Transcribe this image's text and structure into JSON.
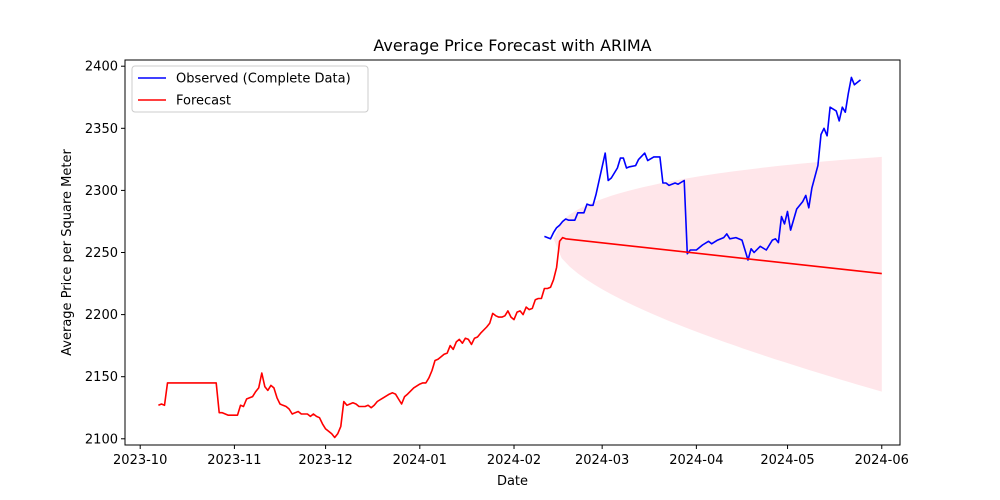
{
  "chart_data": {
    "type": "line",
    "title": "Average Price Forecast with ARIMA",
    "xlabel": "Date",
    "ylabel": "Average Price per Square Meter",
    "xlim": [
      "2023-09-26",
      "2024-06-07"
    ],
    "ylim": [
      2095,
      2405
    ],
    "x_ticks": [
      "2023-10",
      "2023-11",
      "2023-12",
      "2024-01",
      "2024-02",
      "2024-03",
      "2024-04",
      "2024-05",
      "2024-06"
    ],
    "y_ticks": [
      2100,
      2150,
      2200,
      2250,
      2300,
      2350,
      2400
    ],
    "grid": false,
    "legend": {
      "placement": "top-left",
      "entries": [
        "Observed (Complete Data)",
        "Forecast"
      ]
    },
    "colors": {
      "observed": "#0000ff",
      "forecast": "#ff0000",
      "band": "#ffc0cb"
    },
    "series": [
      {
        "name": "Observed (Complete Data)",
        "color": "#0000ff",
        "points": [
          [
            "2024-02-11",
            2263
          ],
          [
            "2024-02-12",
            2262
          ],
          [
            "2024-02-13",
            2261
          ],
          [
            "2024-02-14",
            2266
          ],
          [
            "2024-02-15",
            2270
          ],
          [
            "2024-02-16",
            2272
          ],
          [
            "2024-02-17",
            2275
          ],
          [
            "2024-02-18",
            2277
          ],
          [
            "2024-02-19",
            2276
          ],
          [
            "2024-02-21",
            2276
          ],
          [
            "2024-02-22",
            2282
          ],
          [
            "2024-02-24",
            2282
          ],
          [
            "2024-02-25",
            2289
          ],
          [
            "2024-02-26",
            2288
          ],
          [
            "2024-02-27",
            2288
          ],
          [
            "2024-02-28",
            2297
          ],
          [
            "2024-02-29",
            2308
          ],
          [
            "2024-03-02",
            2330
          ],
          [
            "2024-03-03",
            2308
          ],
          [
            "2024-03-04",
            2310
          ],
          [
            "2024-03-06",
            2318
          ],
          [
            "2024-03-07",
            2326
          ],
          [
            "2024-03-08",
            2326
          ],
          [
            "2024-03-09",
            2318
          ],
          [
            "2024-03-10",
            2319
          ],
          [
            "2024-03-12",
            2320
          ],
          [
            "2024-03-13",
            2325
          ],
          [
            "2024-03-15",
            2330
          ],
          [
            "2024-03-16",
            2324
          ],
          [
            "2024-03-18",
            2327
          ],
          [
            "2024-03-20",
            2327
          ],
          [
            "2024-03-21",
            2306
          ],
          [
            "2024-03-22",
            2306
          ],
          [
            "2024-03-23",
            2304
          ],
          [
            "2024-03-25",
            2306
          ],
          [
            "2024-03-26",
            2305
          ],
          [
            "2024-03-28",
            2308
          ],
          [
            "2024-03-29",
            2249
          ],
          [
            "2024-03-30",
            2252
          ],
          [
            "2024-04-01",
            2252
          ],
          [
            "2024-04-03",
            2256
          ],
          [
            "2024-04-05",
            2259
          ],
          [
            "2024-04-06",
            2257
          ],
          [
            "2024-04-08",
            2260
          ],
          [
            "2024-04-10",
            2262
          ],
          [
            "2024-04-11",
            2265
          ],
          [
            "2024-04-12",
            2261
          ],
          [
            "2024-04-14",
            2262
          ],
          [
            "2024-04-16",
            2260
          ],
          [
            "2024-04-18",
            2244
          ],
          [
            "2024-04-19",
            2253
          ],
          [
            "2024-04-20",
            2250
          ],
          [
            "2024-04-22",
            2255
          ],
          [
            "2024-04-24",
            2252
          ],
          [
            "2024-04-26",
            2260
          ],
          [
            "2024-04-27",
            2261
          ],
          [
            "2024-04-28",
            2258
          ],
          [
            "2024-04-29",
            2279
          ],
          [
            "2024-04-30",
            2273
          ],
          [
            "2024-05-01",
            2283
          ],
          [
            "2024-05-02",
            2268
          ],
          [
            "2024-05-04",
            2285
          ],
          [
            "2024-05-06",
            2291
          ],
          [
            "2024-05-07",
            2296
          ],
          [
            "2024-05-08",
            2286
          ],
          [
            "2024-05-09",
            2302
          ],
          [
            "2024-05-11",
            2320
          ],
          [
            "2024-05-12",
            2345
          ],
          [
            "2024-05-13",
            2350
          ],
          [
            "2024-05-14",
            2344
          ],
          [
            "2024-05-15",
            2367
          ],
          [
            "2024-05-17",
            2364
          ],
          [
            "2024-05-18",
            2356
          ],
          [
            "2024-05-19",
            2367
          ],
          [
            "2024-05-20",
            2363
          ],
          [
            "2024-05-21",
            2378
          ],
          [
            "2024-05-22",
            2391
          ],
          [
            "2024-05-23",
            2385
          ],
          [
            "2024-05-25",
            2389
          ]
        ]
      },
      {
        "name": "Forecast",
        "color": "#ff0000",
        "points": [
          [
            "2023-10-07",
            2127
          ],
          [
            "2023-10-08",
            2128
          ],
          [
            "2023-10-09",
            2127
          ],
          [
            "2023-10-10",
            2145
          ],
          [
            "2023-10-12",
            2145
          ],
          [
            "2023-10-22",
            2145
          ],
          [
            "2023-10-24",
            2145
          ],
          [
            "2023-10-26",
            2145
          ],
          [
            "2023-10-27",
            2121
          ],
          [
            "2023-10-28",
            2121
          ],
          [
            "2023-10-30",
            2119
          ],
          [
            "2023-11-01",
            2119
          ],
          [
            "2023-11-02",
            2119
          ],
          [
            "2023-11-03",
            2127
          ],
          [
            "2023-11-04",
            2126
          ],
          [
            "2023-11-05",
            2132
          ],
          [
            "2023-11-06",
            2133
          ],
          [
            "2023-11-07",
            2134
          ],
          [
            "2023-11-08",
            2138
          ],
          [
            "2023-11-09",
            2141
          ],
          [
            "2023-11-10",
            2153
          ],
          [
            "2023-11-11",
            2142
          ],
          [
            "2023-11-12",
            2139
          ],
          [
            "2023-11-13",
            2143
          ],
          [
            "2023-11-14",
            2141
          ],
          [
            "2023-11-15",
            2133
          ],
          [
            "2023-11-16",
            2128
          ],
          [
            "2023-11-17",
            2127
          ],
          [
            "2023-11-18",
            2126
          ],
          [
            "2023-11-19",
            2124
          ],
          [
            "2023-11-20",
            2120
          ],
          [
            "2023-11-21",
            2121
          ],
          [
            "2023-11-22",
            2122
          ],
          [
            "2023-11-23",
            2120
          ],
          [
            "2023-11-25",
            2120
          ],
          [
            "2023-11-26",
            2118
          ],
          [
            "2023-11-27",
            2120
          ],
          [
            "2023-11-28",
            2118
          ],
          [
            "2023-11-29",
            2117
          ],
          [
            "2023-11-30",
            2112
          ],
          [
            "2023-12-01",
            2108
          ],
          [
            "2023-12-02",
            2106
          ],
          [
            "2023-12-03",
            2104
          ],
          [
            "2023-12-04",
            2101
          ],
          [
            "2023-12-05",
            2104
          ],
          [
            "2023-12-06",
            2110
          ],
          [
            "2023-12-07",
            2130
          ],
          [
            "2023-12-08",
            2127
          ],
          [
            "2023-12-09",
            2128
          ],
          [
            "2023-12-10",
            2129
          ],
          [
            "2023-12-11",
            2128
          ],
          [
            "2023-12-12",
            2126
          ],
          [
            "2023-12-14",
            2126
          ],
          [
            "2023-12-15",
            2127
          ],
          [
            "2023-12-16",
            2125
          ],
          [
            "2023-12-17",
            2127
          ],
          [
            "2023-12-18",
            2130
          ],
          [
            "2023-12-20",
            2133
          ],
          [
            "2023-12-22",
            2136
          ],
          [
            "2023-12-23",
            2137
          ],
          [
            "2023-12-24",
            2136
          ],
          [
            "2023-12-25",
            2132
          ],
          [
            "2023-12-26",
            2128
          ],
          [
            "2023-12-27",
            2134
          ],
          [
            "2023-12-28",
            2136
          ],
          [
            "2023-12-30",
            2141
          ],
          [
            "2024-01-01",
            2144
          ],
          [
            "2024-01-02",
            2145
          ],
          [
            "2024-01-03",
            2145
          ],
          [
            "2024-01-04",
            2149
          ],
          [
            "2024-01-05",
            2155
          ],
          [
            "2024-01-06",
            2163
          ],
          [
            "2024-01-07",
            2164
          ],
          [
            "2024-01-08",
            2166
          ],
          [
            "2024-01-09",
            2168
          ],
          [
            "2024-01-10",
            2169
          ],
          [
            "2024-01-11",
            2175
          ],
          [
            "2024-01-12",
            2172
          ],
          [
            "2024-01-13",
            2178
          ],
          [
            "2024-01-14",
            2180
          ],
          [
            "2024-01-15",
            2177
          ],
          [
            "2024-01-16",
            2181
          ],
          [
            "2024-01-17",
            2180
          ],
          [
            "2024-01-18",
            2176
          ],
          [
            "2024-01-19",
            2181
          ],
          [
            "2024-01-20",
            2182
          ],
          [
            "2024-01-21",
            2185
          ],
          [
            "2024-01-23",
            2190
          ],
          [
            "2024-01-24",
            2193
          ],
          [
            "2024-01-25",
            2201
          ],
          [
            "2024-01-26",
            2199
          ],
          [
            "2024-01-27",
            2198
          ],
          [
            "2024-01-28",
            2198
          ],
          [
            "2024-01-29",
            2199
          ],
          [
            "2024-01-30",
            2203
          ],
          [
            "2024-01-31",
            2198
          ],
          [
            "2024-02-01",
            2196
          ],
          [
            "2024-02-02",
            2202
          ],
          [
            "2024-02-03",
            2203
          ],
          [
            "2024-02-04",
            2200
          ],
          [
            "2024-02-05",
            2206
          ],
          [
            "2024-02-06",
            2204
          ],
          [
            "2024-02-07",
            2205
          ],
          [
            "2024-02-08",
            2212
          ],
          [
            "2024-02-09",
            2213
          ],
          [
            "2024-02-10",
            2213
          ],
          [
            "2024-02-11",
            2221
          ],
          [
            "2024-02-12",
            2221
          ],
          [
            "2024-02-13",
            2222
          ],
          [
            "2024-02-14",
            2228
          ],
          [
            "2024-02-15",
            2238
          ],
          [
            "2024-02-16",
            2259
          ],
          [
            "2024-02-17",
            2262
          ],
          [
            "2024-02-18",
            2261
          ],
          [
            "2024-06-01",
            2233
          ]
        ]
      }
    ],
    "confidence_band": {
      "color": "#ffc0cb",
      "start": [
        "2024-02-14",
        2261
      ],
      "end_date": "2024-06-01",
      "end_lower": 2138,
      "end_upper": 2327
    }
  }
}
